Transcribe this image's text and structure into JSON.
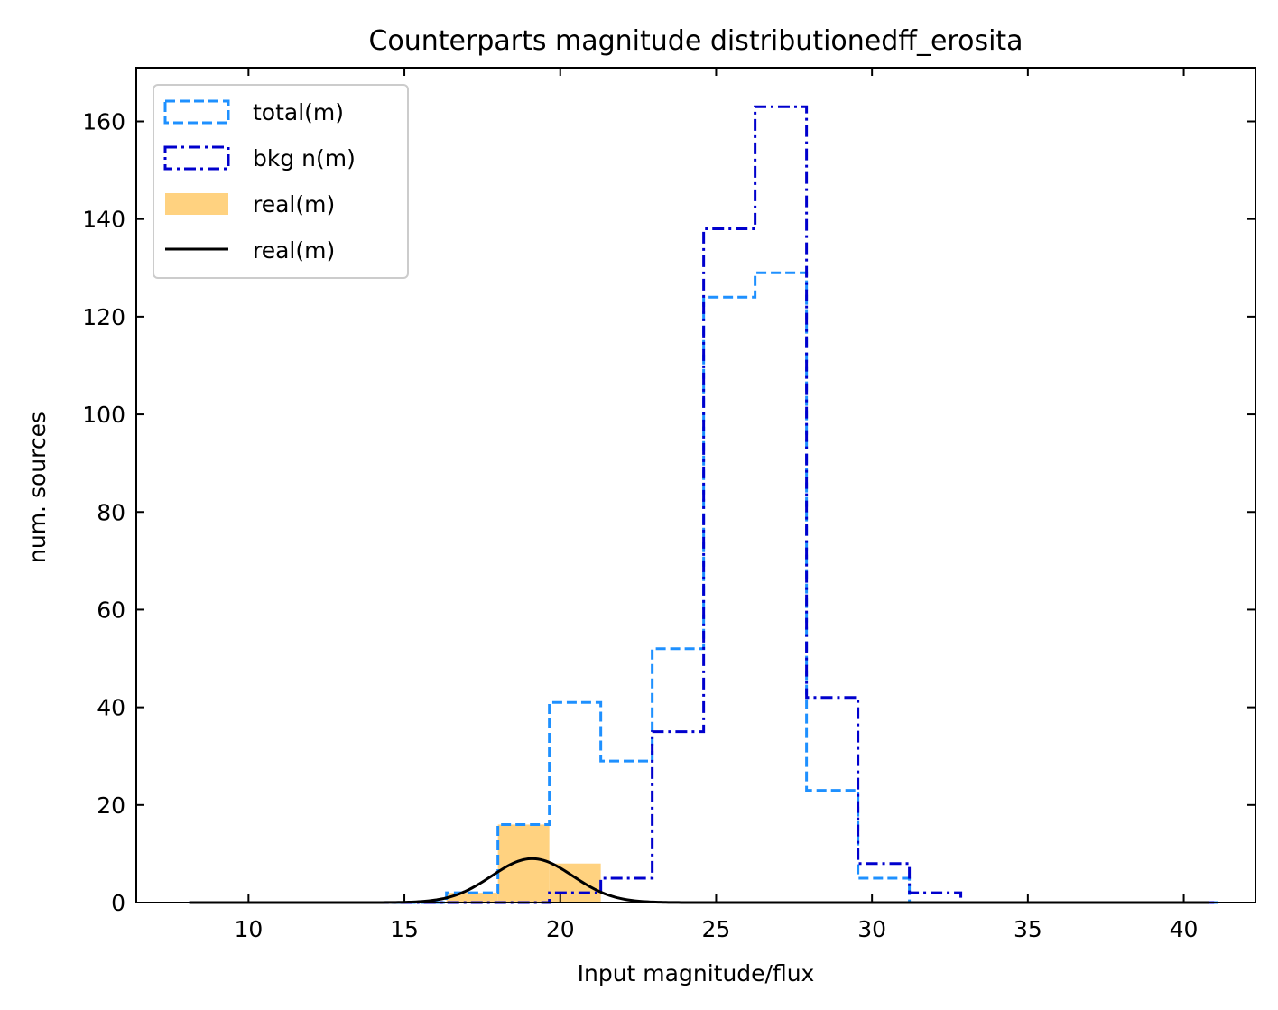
{
  "chart_data": {
    "type": "histogram",
    "title": "Counterparts magnitude distributionedff_erosita",
    "xlabel": "Input magnitude/flux",
    "ylabel": "num. sources",
    "xlim": [
      6.4,
      42.3
    ],
    "ylim": [
      0,
      171
    ],
    "xticks": [
      10,
      15,
      20,
      25,
      30,
      35,
      40
    ],
    "yticks": [
      0,
      20,
      40,
      60,
      80,
      100,
      120,
      140,
      160
    ],
    "grid": false,
    "legend_position": "top-left",
    "bin_edges": [
      8.1,
      9.75,
      11.4,
      13.05,
      14.7,
      16.35,
      18.0,
      19.65,
      21.3,
      22.95,
      24.6,
      26.25,
      27.9,
      29.55,
      31.2,
      32.85,
      34.5,
      36.15,
      37.8,
      39.45,
      41.1
    ],
    "series": [
      {
        "name": "total(m)",
        "style": "dashed-step",
        "color": "#1e90ff",
        "values": [
          0,
          0,
          0,
          0,
          0,
          2,
          16,
          41,
          29,
          52,
          124,
          129,
          23,
          5,
          0,
          0,
          0,
          0,
          0,
          0
        ]
      },
      {
        "name": "bkg n(m)",
        "style": "dashdot-step",
        "color": "#0000cd",
        "values": [
          0,
          0,
          0,
          0,
          0,
          0,
          0,
          2,
          5,
          35,
          138,
          163,
          42,
          8,
          2,
          0,
          0,
          0,
          0,
          0
        ]
      },
      {
        "name": "real(m)",
        "style": "filled-bar",
        "color": "#ffd280",
        "values": [
          0,
          0,
          0,
          0,
          0,
          2,
          16,
          8,
          0,
          0,
          0,
          0,
          0,
          0,
          0,
          0,
          0,
          0,
          0,
          0
        ]
      },
      {
        "name": "real(m)",
        "style": "line",
        "color": "#000000",
        "gaussian": {
          "amplitude": 9,
          "mean": 19.1,
          "sigma": 1.3,
          "x_range": [
            8.1,
            40.8
          ]
        }
      }
    ]
  }
}
